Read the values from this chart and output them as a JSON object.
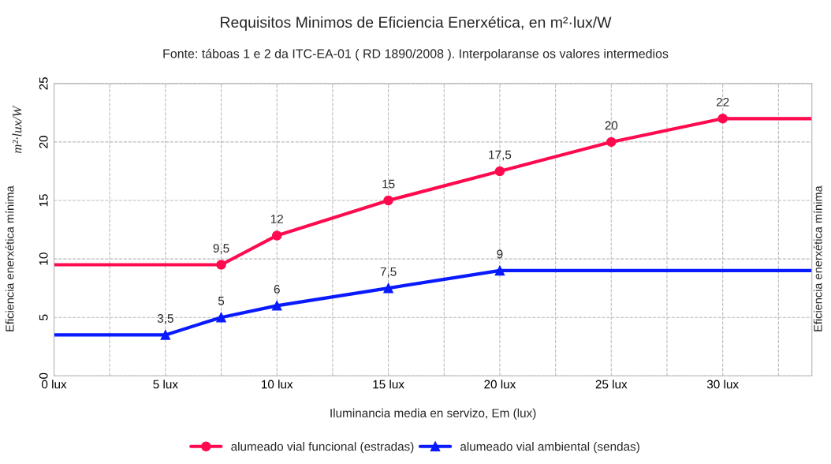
{
  "chart_data": {
    "type": "line",
    "title": "Requisitos Minimos de Eficiencia Enerxética, en m²·lux/W",
    "subtitle": "Fonte: táboas 1 e 2 da ITC-EA-01 ( RD 1890/2008 ). Interpolaranse os valores intermedios",
    "xlabel": "Iluminancia media en servizo, Em (lux)",
    "ylabel": "Eficiencia enerxética mínima",
    "y2label": "Eficiencia enerxética mínima",
    "annotations": [
      "m²·lux/W"
    ],
    "series": [
      {
        "name": "alumeado vial funcional (estradas)",
        "color": "#ff0a4f",
        "marker": "circle",
        "x": [
          0,
          7.5,
          10,
          15,
          20,
          25,
          30,
          34
        ],
        "values": [
          9.5,
          9.5,
          12,
          15,
          17.5,
          20,
          22,
          22
        ],
        "value_labels": [
          null,
          "9,5",
          "12",
          "15",
          "17,5",
          "20",
          "22",
          null
        ]
      },
      {
        "name": "alumeado vial ambiental (sendas)",
        "color": "#0a1aff",
        "marker": "triangle",
        "x": [
          0,
          5,
          7.5,
          10,
          15,
          20,
          34
        ],
        "values": [
          3.5,
          3.5,
          5,
          6,
          7.5,
          9,
          9
        ],
        "value_labels": [
          null,
          "3,5",
          "5",
          "6",
          "7,5",
          "9",
          null
        ]
      }
    ],
    "xlim": [
      0,
      34
    ],
    "xticks": [
      {
        "value": 0,
        "label": "0 lux"
      },
      {
        "value": 2.5,
        "label": null
      },
      {
        "value": 5,
        "label": "5 lux"
      },
      {
        "value": 7.5,
        "label": null
      },
      {
        "value": 10,
        "label": "10 lux"
      },
      {
        "value": 12.5,
        "label": null
      },
      {
        "value": 15,
        "label": "15 lux"
      },
      {
        "value": 17.5,
        "label": null
      },
      {
        "value": 20,
        "label": "20 lux"
      },
      {
        "value": 22.5,
        "label": null
      },
      {
        "value": 25,
        "label": "25 lux"
      },
      {
        "value": 27.5,
        "label": null
      },
      {
        "value": 30,
        "label": "30 lux"
      },
      {
        "value": 32.5,
        "label": null
      }
    ],
    "ylim": [
      0,
      25
    ],
    "yticks": [
      0,
      5,
      10,
      15,
      20,
      25
    ],
    "grid": true,
    "legend": "bottom",
    "line_style": "solid"
  }
}
